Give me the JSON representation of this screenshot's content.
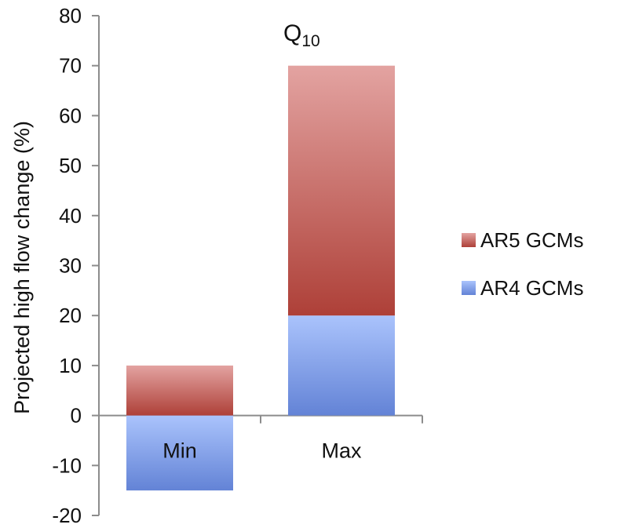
{
  "chart_data": {
    "type": "bar",
    "stacked": true,
    "title": "Q",
    "title_subscript": "10",
    "xlabel": "",
    "ylabel": "Projected  high flow change (%)",
    "categories": [
      "Min",
      "Max"
    ],
    "ylim": [
      -20,
      80
    ],
    "yticks": [
      80,
      70,
      60,
      50,
      40,
      30,
      20,
      10,
      0,
      -10,
      -20
    ],
    "grid": false,
    "legend_position": "right",
    "series": [
      {
        "name": "AR4 GCMs",
        "values": [
          -15,
          20
        ],
        "color": "#6f8fdc",
        "color_light": "#a9c1fb"
      },
      {
        "name": "AR5 GCMs",
        "values": [
          10,
          50
        ],
        "color": "#b5463f",
        "color_light": "#e0a2a0"
      }
    ],
    "legend_order": [
      "AR5 GCMs",
      "AR4 GCMs"
    ]
  }
}
